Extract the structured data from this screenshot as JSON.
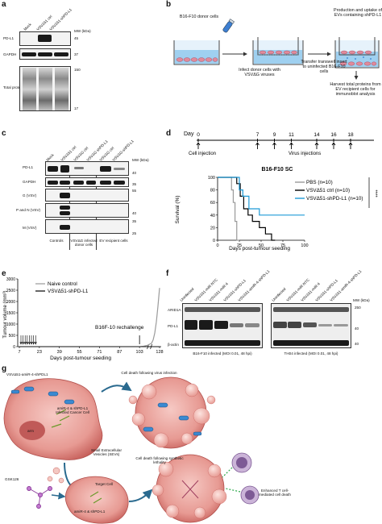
{
  "panel_a": {
    "letter": "a",
    "lanes": [
      "Mock",
      "VSVΔ51 ctrl",
      "VSVΔ51-shPD-L1"
    ],
    "mw_header": "MW (kDa)",
    "rows": [
      {
        "label": "PD-L1",
        "mw": "45"
      },
      {
        "label": "GAPDH",
        "mw": "37"
      },
      {
        "label": "Total protein",
        "mw_top": "150",
        "mw_bottom": "17"
      }
    ]
  },
  "panel_b": {
    "letter": "b",
    "step1": "B16-F10 donor cells",
    "step2": "Infect donor cells with VSVΔG viruses",
    "step3": "Transfer transwell insert to uninfected B16-F10 cells",
    "step4": "Production and uptake of EVs containing shPD-L1",
    "step5": "Harvest total proteins from EV recipient cells for immunoblot analysis"
  },
  "panel_c": {
    "letter": "c",
    "lanes": [
      "Mock",
      "VSVΔ51 ctrl",
      "VSVΔG ctrl",
      "VSVΔG shPD-L1",
      "VSVΔG ctrl",
      "VSVΔG-shPD-L1"
    ],
    "mw_header": "MW (kDa)",
    "rows": [
      {
        "label": "PD-L1",
        "mw": "40"
      },
      {
        "label": "GAPDH",
        "mw": "35"
      },
      {
        "label": "G (VSV)",
        "mw": "55"
      },
      {
        "label": "P and N (VSV)",
        "mw": "40"
      },
      {
        "label": "M (VSV)",
        "mw": "35"
      }
    ],
    "mw_extra": "25",
    "group_labels": [
      "Controls",
      "VSVΔG infected donor cells",
      "EV recipient cells"
    ]
  },
  "panel_d": {
    "letter": "d",
    "timeline_prefix": "Day",
    "timeline_days": [
      "0",
      "7",
      "9",
      "11",
      "14",
      "16",
      "18"
    ],
    "cell_injection": "Cell injection",
    "virus_injections": "Virus injections",
    "chart_data": {
      "type": "line",
      "title": "B16-F10 SC",
      "xlabel": "Days post-tumour seeding",
      "ylabel": "Survival (%)",
      "xlim": [
        0,
        100
      ],
      "ylim": [
        0,
        100
      ],
      "xticks": [
        "0",
        "25",
        "50",
        "75",
        "100"
      ],
      "yticks": [
        "0",
        "20",
        "40",
        "60",
        "80",
        "100"
      ],
      "significance": "****",
      "series": [
        {
          "name": "PBS (n=10)",
          "color": "#9a9a9a",
          "x": [
            0,
            16,
            16,
            18,
            18,
            20,
            20,
            22,
            22,
            25
          ],
          "y": [
            100,
            100,
            80,
            80,
            60,
            60,
            30,
            30,
            0,
            0
          ]
        },
        {
          "name": "VSVΔ51 ctrl (n=10)",
          "color": "#000000",
          "x": [
            0,
            22,
            22,
            26,
            26,
            30,
            30,
            35,
            35,
            40,
            40,
            48,
            48,
            55,
            55,
            62,
            62,
            66
          ],
          "y": [
            100,
            100,
            90,
            90,
            70,
            70,
            50,
            50,
            40,
            40,
            30,
            30,
            20,
            20,
            10,
            10,
            0,
            0
          ]
        },
        {
          "name": "VSVΔ51-shPD-L1 (n=10)",
          "color": "#1f9ad6",
          "x": [
            0,
            25,
            25,
            29,
            29,
            36,
            36,
            48,
            48,
            100
          ],
          "y": [
            100,
            100,
            80,
            80,
            70,
            70,
            50,
            50,
            40,
            40
          ]
        }
      ]
    }
  },
  "panel_e": {
    "letter": "e",
    "annotation": "B16F-10 rechallenge",
    "chart_data": {
      "type": "line",
      "xlabel": "Days post-tumour seeding",
      "ylabel": "Tumour volume (mm³)",
      "ylim": [
        0,
        3000
      ],
      "yticks": [
        "0",
        "500",
        "1000",
        "1500",
        "2000",
        "2500",
        "3000"
      ],
      "xticks": [
        "7",
        "23",
        "39",
        "55",
        "71",
        "87",
        "103",
        "128"
      ],
      "series": [
        {
          "name": "Naive control",
          "color": "#9a9a9a",
          "x": [
            103,
            108,
            113,
            118,
            120,
            122,
            124,
            126,
            128
          ],
          "y": [
            0,
            20,
            60,
            150,
            300,
            600,
            1100,
            1800,
            2600
          ]
        },
        {
          "name": "VSVΔ51-shPD-L1",
          "color": "#000000",
          "x": [
            7,
            103,
            128
          ],
          "y": [
            0,
            0,
            0
          ]
        }
      ]
    }
  },
  "panel_f": {
    "letter": "f",
    "lanes_left": [
      "Uninfected",
      "VSVΔ51-miR-NTC",
      "VSVΔ51-miR-4",
      "VSVΔ51-shPD-L1",
      "VSVΔ51-amiR-4-shPD-L1"
    ],
    "lanes_right": [
      "Uninfected",
      "VSVΔ51-miR-NTC",
      "VSVΔ51-miR-4",
      "VSVΔ51-shPD-L1",
      "VSVΔ51-amiR-4-shPD-L1"
    ],
    "mw_header": "MW (kDa)",
    "rows": [
      {
        "label": "ARID1A",
        "mw": "250"
      },
      {
        "label": "PD-L1",
        "mw": "40"
      },
      {
        "label": "β-actin",
        "mw": "40"
      }
    ],
    "caption_left": "B16-F10 infected (MOI 0.01, 48 hpi)",
    "caption_right": "TH04 infected (MOI 0.01, 48 hpi)"
  },
  "panel_g": {
    "letter": "g",
    "virus_label": "VSVΔ51-amiR-4-shPDL1",
    "infected_cell": "amiR-4 & shPD-L1 Infected Cancer Cell",
    "nucleus": "arm",
    "sevs": "Small Extracellular Vesicles (SEVs)",
    "cell_death_virus": "Cell death following virus infection",
    "gsk": "GSK126",
    "target_cell": "Target Cell",
    "target_mirna": "amiR-4 & shPD-L1",
    "cell_death_synthetic": "Cell death following synthetic lethality",
    "tcell": "Enhanced T cell-mediated cell death"
  }
}
